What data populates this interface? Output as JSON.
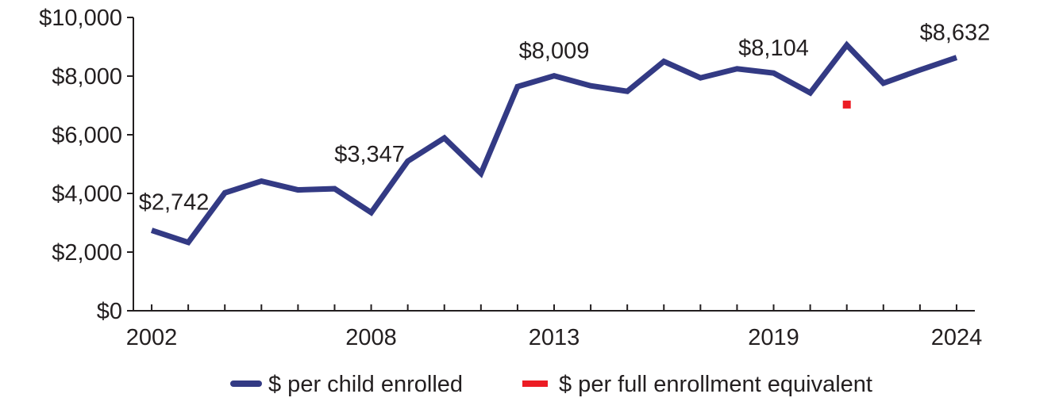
{
  "chart_data": {
    "type": "line",
    "x": [
      2002,
      2003,
      2004,
      2005,
      2006,
      2007,
      2008,
      2009,
      2010,
      2011,
      2012,
      2013,
      2014,
      2015,
      2016,
      2017,
      2018,
      2019,
      2020,
      2021,
      2022,
      2023,
      2024
    ],
    "x_tick_labels": [
      "2002",
      "2008",
      "2013",
      "2019",
      "2024"
    ],
    "x_tick_values": [
      2002,
      2008,
      2013,
      2019,
      2024
    ],
    "ylim": [
      0,
      10000
    ],
    "y_ticks": [
      0,
      2000,
      4000,
      6000,
      8000,
      10000
    ],
    "y_tick_labels": [
      "$0",
      "$2,000",
      "$4,000",
      "$6,000",
      "$8,000",
      "$10,000"
    ],
    "series": [
      {
        "name": "$ per child enrolled",
        "color": "#333a84",
        "values": [
          2742,
          2330,
          4020,
          4420,
          4120,
          4160,
          3347,
          5100,
          5890,
          4680,
          7640,
          8009,
          7670,
          7480,
          8500,
          7940,
          8250,
          8104,
          7430,
          9060,
          7760,
          8210,
          8632
        ]
      },
      {
        "name": "$ per full enrollment equivalent",
        "color": "#ec1c24",
        "marker_only": true,
        "points": [
          {
            "x": 2021,
            "y": 7030
          }
        ]
      }
    ],
    "data_labels": [
      {
        "x": 2002,
        "y": 2742,
        "text": "$2,742"
      },
      {
        "x": 2008,
        "y": 3347,
        "text": "$3,347"
      },
      {
        "x": 2013,
        "y": 8009,
        "text": "$8,009"
      },
      {
        "x": 2019,
        "y": 8104,
        "text": "$8,104"
      },
      {
        "x": 2024,
        "y": 8632,
        "text": "$8,632"
      }
    ],
    "legend_position": "bottom",
    "grid": false,
    "title": "",
    "xlabel": "",
    "ylabel": ""
  }
}
